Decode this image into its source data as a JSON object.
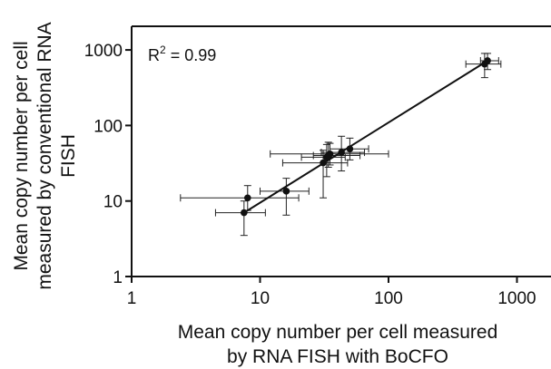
{
  "chart_data": {
    "type": "scatter",
    "xscale": "log",
    "yscale": "log",
    "xlim": [
      1,
      2000
    ],
    "ylim": [
      1,
      2000
    ],
    "xticks": [
      1,
      10,
      100,
      1000
    ],
    "yticks": [
      1,
      10,
      100,
      1000
    ],
    "xtick_labels": [
      "1",
      "10",
      "100",
      "1000"
    ],
    "ytick_labels": [
      "1",
      "10",
      "100",
      "1000"
    ],
    "xlabel_lines": [
      "Mean copy number per cell measured",
      "by RNA FISH with BoCFO"
    ],
    "ylabel_lines": [
      "Mean copy number per cell",
      "measured  by conventional RNA",
      "FISH"
    ],
    "annotation": {
      "prefix": "R",
      "superscript": "2",
      "suffix": " = 0.99"
    },
    "grid": false,
    "points": [
      {
        "x": 7.5,
        "y": 7,
        "xerr": [
          4.5,
          11
        ],
        "yerr": [
          3.5,
          10
        ]
      },
      {
        "x": 8,
        "y": 11,
        "xerr": [
          2.4,
          20
        ],
        "yerr": [
          7.5,
          16
        ]
      },
      {
        "x": 16,
        "y": 13.5,
        "xerr": [
          10,
          24
        ],
        "yerr": [
          6.5,
          20
        ]
      },
      {
        "x": 31,
        "y": 32,
        "xerr": [
          15,
          48
        ],
        "yerr": [
          11,
          47
        ]
      },
      {
        "x": 33,
        "y": 38,
        "xerr": [
          21,
          46
        ],
        "yerr": [
          21,
          56
        ]
      },
      {
        "x": 35,
        "y": 42,
        "xerr": [
          12,
          100
        ],
        "yerr": [
          30,
          58
        ]
      },
      {
        "x": 34,
        "y": 40,
        "xerr": [
          26,
          60
        ],
        "yerr": [
          28,
          60
        ]
      },
      {
        "x": 43,
        "y": 44,
        "xerr": [
          30,
          65
        ],
        "yerr": [
          25,
          72
        ]
      },
      {
        "x": 50,
        "y": 49,
        "xerr": [
          35,
          70
        ],
        "yerr": [
          35,
          68
        ]
      },
      {
        "x": 560,
        "y": 650,
        "xerr": [
          400,
          750
        ],
        "yerr": [
          430,
          900
        ]
      },
      {
        "x": 590,
        "y": 720,
        "xerr": [
          520,
          720
        ],
        "yerr": [
          550,
          900
        ]
      }
    ],
    "fit_line": {
      "x": [
        7.5,
        590
      ],
      "y": [
        7,
        720
      ]
    }
  }
}
